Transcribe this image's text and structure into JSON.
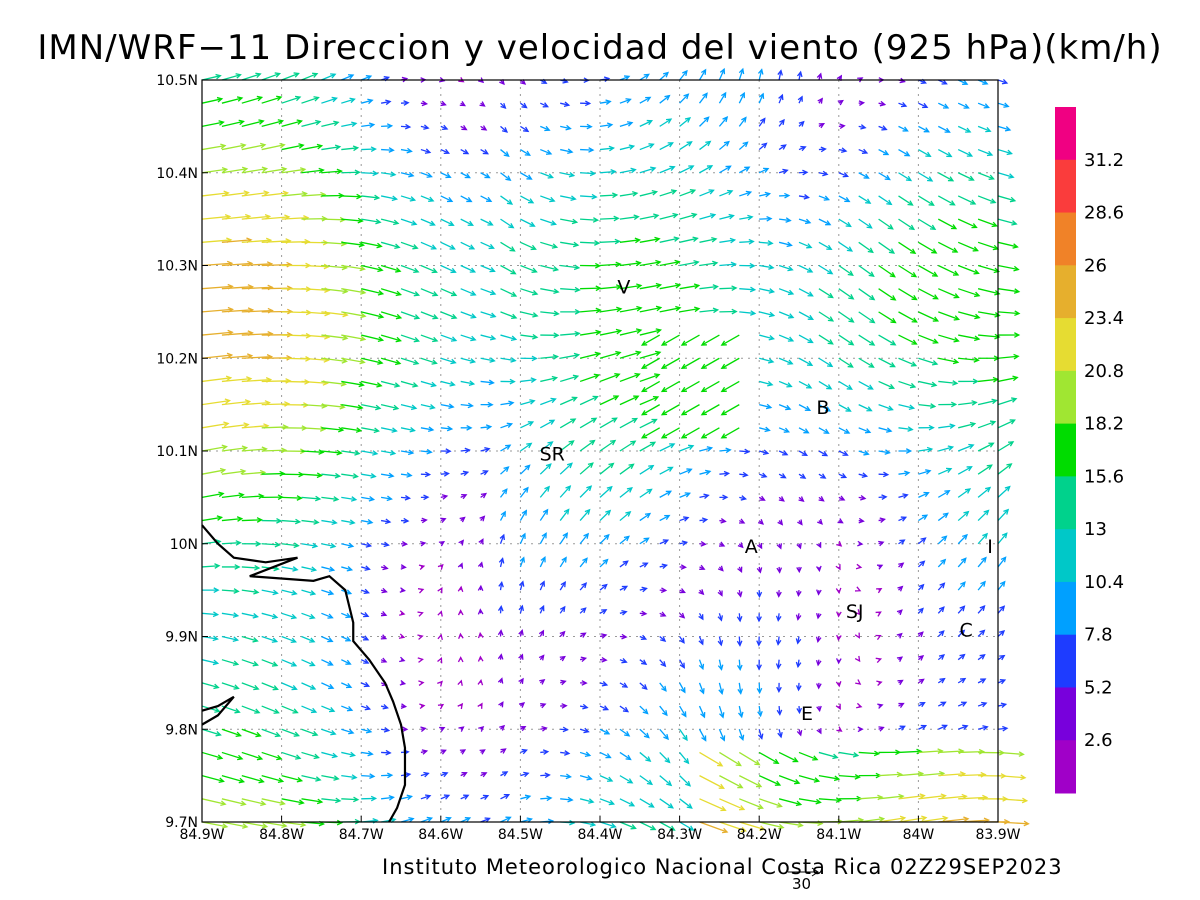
{
  "title": "IMN/WRF−11 Direccion y velocidad del viento (925 hPa)(km/h)",
  "credit": "Instituto Meteorologico Nacional Costa Rica 02Z29SEP2023",
  "map": {
    "lon_range": [
      -84.9,
      -83.9
    ],
    "lat_range": [
      9.7,
      10.5
    ],
    "x_tick_labels": [
      "84.9W",
      "84.8W",
      "84.7W",
      "84.6W",
      "84.5W",
      "84.4W",
      "84.3W",
      "84.2W",
      "84.1W",
      "84W",
      "83.9W"
    ],
    "y_tick_labels": [
      "9.7N",
      "9.8N",
      "9.9N",
      "10N",
      "10.1N",
      "10.2N",
      "10.3N",
      "10.4N",
      "10.5N"
    ],
    "place_labels": [
      {
        "text": "V",
        "lon": -84.37,
        "lat": 10.27
      },
      {
        "text": "B",
        "lon": -84.12,
        "lat": 10.14
      },
      {
        "text": "SR",
        "lon": -84.46,
        "lat": 10.09
      },
      {
        "text": "A",
        "lon": -84.21,
        "lat": 9.99
      },
      {
        "text": "I",
        "lon": -83.91,
        "lat": 9.99
      },
      {
        "text": "SJ",
        "lon": -84.08,
        "lat": 9.92
      },
      {
        "text": "C",
        "lon": -83.94,
        "lat": 9.9
      },
      {
        "text": "E",
        "lon": -84.14,
        "lat": 9.81
      }
    ],
    "coastline": [
      [
        -84.9,
        10.02
      ],
      [
        -84.88,
        10.0
      ],
      [
        -84.86,
        9.985
      ],
      [
        -84.82,
        9.98
      ],
      [
        -84.78,
        9.985
      ],
      [
        -84.84,
        9.965
      ],
      [
        -84.76,
        9.96
      ],
      [
        -84.74,
        9.965
      ],
      [
        -84.72,
        9.95
      ],
      [
        -84.71,
        9.915
      ],
      [
        -84.71,
        9.895
      ],
      [
        -84.69,
        9.875
      ],
      [
        -84.67,
        9.85
      ],
      [
        -84.66,
        9.83
      ],
      [
        -84.65,
        9.805
      ],
      [
        -84.645,
        9.78
      ],
      [
        -84.645,
        9.74
      ],
      [
        -84.655,
        9.715
      ],
      [
        -84.665,
        9.7
      ]
    ],
    "coastline_inset": [
      [
        -84.9,
        9.82
      ],
      [
        -84.88,
        9.825
      ],
      [
        -84.86,
        9.835
      ],
      [
        -84.88,
        9.815
      ],
      [
        -84.9,
        9.805
      ]
    ]
  },
  "colorbar": {
    "levels": [
      "2.6",
      "5.2",
      "7.8",
      "10.4",
      "13",
      "15.6",
      "18.2",
      "20.8",
      "23.4",
      "26",
      "28.6",
      "31.2"
    ],
    "colors": [
      "#a000c8",
      "#7800dc",
      "#1e3cff",
      "#00a0ff",
      "#00c8c8",
      "#00d28c",
      "#00dc00",
      "#a0e632",
      "#e6dc32",
      "#e6af2d",
      "#f08228",
      "#fa3c3c",
      "#f00082"
    ]
  },
  "scale_arrow": {
    "label": "30",
    "speed_kmh": 30
  }
}
